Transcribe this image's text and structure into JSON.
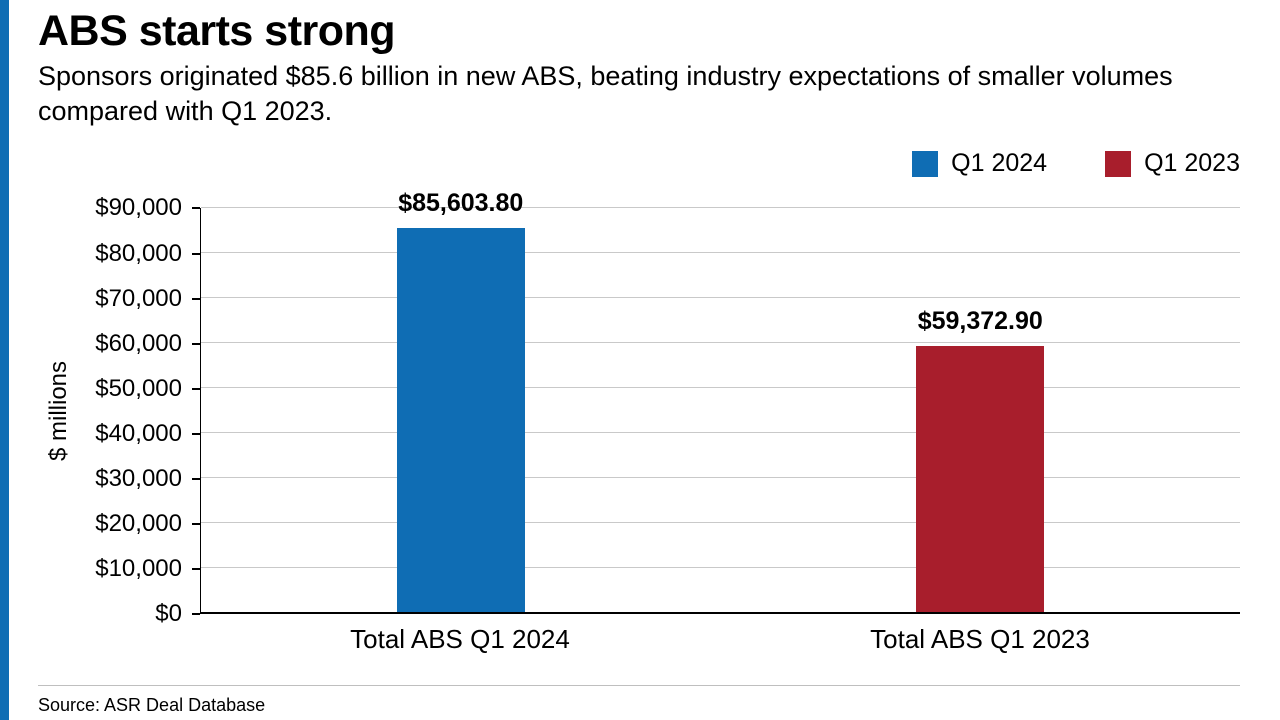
{
  "accent": {
    "color": "#0f6db4"
  },
  "header": {
    "title": "ABS starts strong",
    "subtitle": "Sponsors originated $85.6 billion in new ABS, beating industry expectations of smaller volumes compared with Q1 2023."
  },
  "chart_data": {
    "type": "bar",
    "title": "ABS starts strong",
    "subtitle": "Sponsors originated $85.6 billion in new ABS, beating industry expectations of smaller volumes compared with Q1 2023.",
    "categories": [
      "Total ABS Q1 2024",
      "Total ABS Q1 2023"
    ],
    "values": [
      85603.8,
      59372.9
    ],
    "data_labels": [
      "$85,603.80",
      "$59,372.90"
    ],
    "bar_colors": [
      "#0f6db4",
      "#a81e2c"
    ],
    "legend": [
      {
        "label": "Q1 2024",
        "color": "#0f6db4"
      },
      {
        "label": "Q1 2023",
        "color": "#a81e2c"
      }
    ],
    "legend_position": "top-right",
    "xlabel": "",
    "ylabel": "$ millions",
    "ylim": [
      0,
      90000
    ],
    "ytick_step": 10000,
    "ytick_labels": [
      "$0",
      "$10,000",
      "$20,000",
      "$30,000",
      "$40,000",
      "$50,000",
      "$60,000",
      "$70,000",
      "$80,000",
      "$90,000"
    ],
    "grid": true
  },
  "footer": {
    "source": "Source: ASR Deal Database"
  }
}
